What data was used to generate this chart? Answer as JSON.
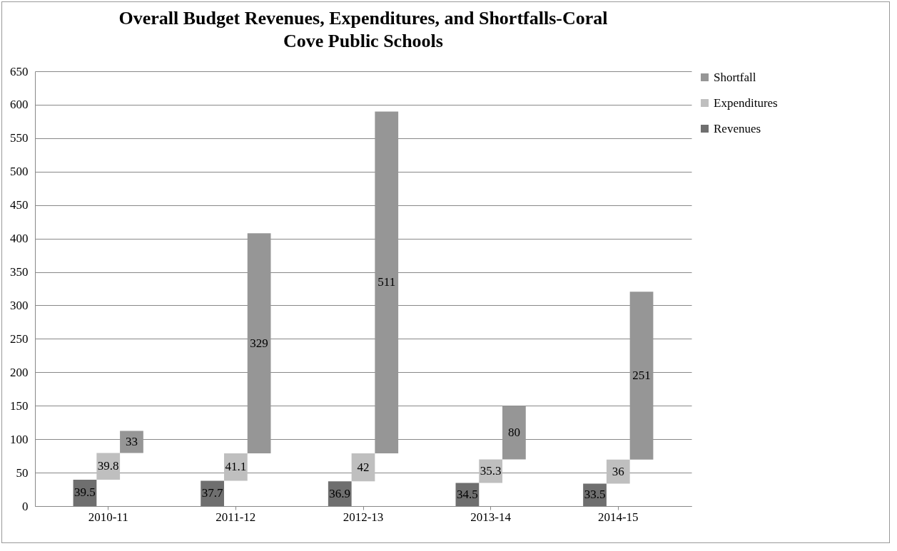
{
  "chart_data": {
    "type": "bar",
    "title": "Overall Budget Revenues, Expenditures, and Shortfalls-Coral Cove Public Schools",
    "categories": [
      "2010-11",
      "2011-12",
      "2012-13",
      "2013-14",
      "2014-15"
    ],
    "stacked": true,
    "series": [
      {
        "name": "Revenues",
        "color": "#6f6f6f",
        "values": [
          39.5,
          37.7,
          36.9,
          34.5,
          33.5
        ]
      },
      {
        "name": "Expenditures",
        "color": "#bfbfbf",
        "values": [
          39.8,
          41.1,
          42,
          35.3,
          36
        ]
      },
      {
        "name": "Shortfall",
        "color": "#969696",
        "values": [
          33,
          329,
          511,
          80,
          251
        ]
      }
    ],
    "ylim": [
      0,
      650
    ],
    "yticks": [
      0,
      50,
      100,
      150,
      200,
      250,
      300,
      350,
      400,
      450,
      500,
      550,
      600,
      650
    ],
    "grid": "y",
    "legend": "right",
    "data_labels": true
  }
}
